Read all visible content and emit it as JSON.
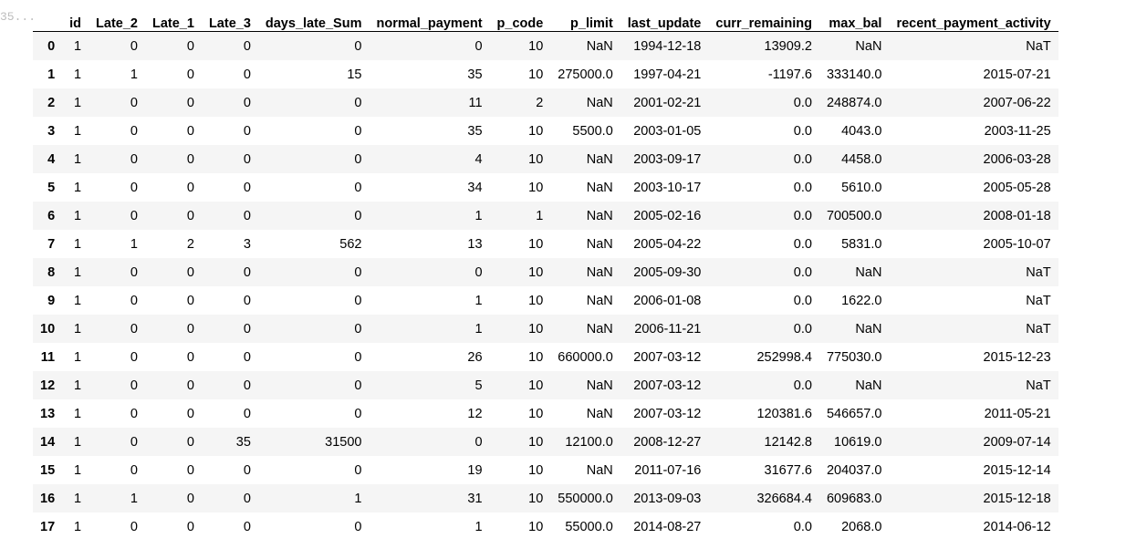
{
  "prompt": {
    "label": "35..."
  },
  "table": {
    "columns": [
      "",
      "id",
      "Late_2",
      "Late_1",
      "Late_3",
      "days_late_Sum",
      "normal_payment",
      "p_code",
      "p_limit",
      "last_update",
      "curr_remaining",
      "max_bal",
      "recent_payment_activity"
    ],
    "rows": [
      [
        "0",
        "1",
        "0",
        "0",
        "0",
        "0",
        "0",
        "10",
        "NaN",
        "1994-12-18",
        "13909.2",
        "NaN",
        "NaT"
      ],
      [
        "1",
        "1",
        "1",
        "0",
        "0",
        "15",
        "35",
        "10",
        "275000.0",
        "1997-04-21",
        "-1197.6",
        "333140.0",
        "2015-07-21"
      ],
      [
        "2",
        "1",
        "0",
        "0",
        "0",
        "0",
        "11",
        "2",
        "NaN",
        "2001-02-21",
        "0.0",
        "248874.0",
        "2007-06-22"
      ],
      [
        "3",
        "1",
        "0",
        "0",
        "0",
        "0",
        "35",
        "10",
        "5500.0",
        "2003-01-05",
        "0.0",
        "4043.0",
        "2003-11-25"
      ],
      [
        "4",
        "1",
        "0",
        "0",
        "0",
        "0",
        "4",
        "10",
        "NaN",
        "2003-09-17",
        "0.0",
        "4458.0",
        "2006-03-28"
      ],
      [
        "5",
        "1",
        "0",
        "0",
        "0",
        "0",
        "34",
        "10",
        "NaN",
        "2003-10-17",
        "0.0",
        "5610.0",
        "2005-05-28"
      ],
      [
        "6",
        "1",
        "0",
        "0",
        "0",
        "0",
        "1",
        "1",
        "NaN",
        "2005-02-16",
        "0.0",
        "700500.0",
        "2008-01-18"
      ],
      [
        "7",
        "1",
        "1",
        "2",
        "3",
        "562",
        "13",
        "10",
        "NaN",
        "2005-04-22",
        "0.0",
        "5831.0",
        "2005-10-07"
      ],
      [
        "8",
        "1",
        "0",
        "0",
        "0",
        "0",
        "0",
        "10",
        "NaN",
        "2005-09-30",
        "0.0",
        "NaN",
        "NaT"
      ],
      [
        "9",
        "1",
        "0",
        "0",
        "0",
        "0",
        "1",
        "10",
        "NaN",
        "2006-01-08",
        "0.0",
        "1622.0",
        "NaT"
      ],
      [
        "10",
        "1",
        "0",
        "0",
        "0",
        "0",
        "1",
        "10",
        "NaN",
        "2006-11-21",
        "0.0",
        "NaN",
        "NaT"
      ],
      [
        "11",
        "1",
        "0",
        "0",
        "0",
        "0",
        "26",
        "10",
        "660000.0",
        "2007-03-12",
        "252998.4",
        "775030.0",
        "2015-12-23"
      ],
      [
        "12",
        "1",
        "0",
        "0",
        "0",
        "0",
        "5",
        "10",
        "NaN",
        "2007-03-12",
        "0.0",
        "NaN",
        "NaT"
      ],
      [
        "13",
        "1",
        "0",
        "0",
        "0",
        "0",
        "12",
        "10",
        "NaN",
        "2007-03-12",
        "120381.6",
        "546657.0",
        "2011-05-21"
      ],
      [
        "14",
        "1",
        "0",
        "0",
        "35",
        "31500",
        "0",
        "10",
        "12100.0",
        "2008-12-27",
        "12142.8",
        "10619.0",
        "2009-07-14"
      ],
      [
        "15",
        "1",
        "0",
        "0",
        "0",
        "0",
        "19",
        "10",
        "NaN",
        "2011-07-16",
        "31677.6",
        "204037.0",
        "2015-12-14"
      ],
      [
        "16",
        "1",
        "1",
        "0",
        "0",
        "1",
        "31",
        "10",
        "550000.0",
        "2013-09-03",
        "326684.4",
        "609683.0",
        "2015-12-18"
      ],
      [
        "17",
        "1",
        "0",
        "0",
        "0",
        "0",
        "1",
        "10",
        "55000.0",
        "2014-08-27",
        "0.0",
        "2068.0",
        "2014-06-12"
      ]
    ]
  }
}
